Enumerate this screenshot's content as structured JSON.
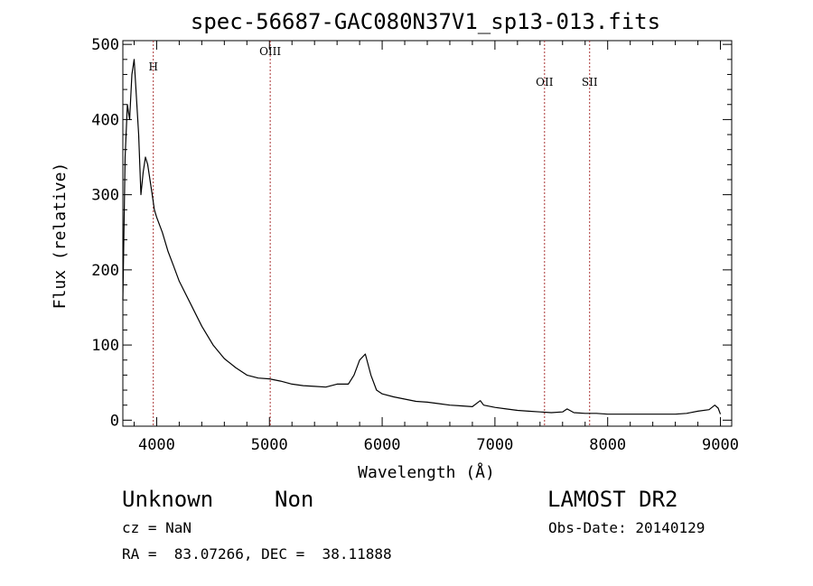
{
  "chart_data": {
    "type": "line",
    "title": "spec-56687-GAC080N37V1_sp13-013.fits",
    "xlabel": "Wavelength (Å)",
    "ylabel": "Flux (relative)",
    "xlim": [
      3700,
      9100
    ],
    "ylim": [
      -8,
      505
    ],
    "xticks": [
      4000,
      5000,
      6000,
      7000,
      8000,
      9000
    ],
    "yticks": [
      0,
      100,
      200,
      300,
      400,
      500
    ],
    "grid": false,
    "lines": [
      {
        "label": "H",
        "x": 3970
      },
      {
        "label": "OIII",
        "x": 5007
      },
      {
        "label": "OII",
        "x": 7440
      },
      {
        "label": "SII",
        "x": 7840
      }
    ],
    "series": [
      {
        "x": [
          3700,
          3720,
          3740,
          3760,
          3780,
          3800,
          3820,
          3840,
          3860,
          3880,
          3900,
          3920,
          3940,
          3960,
          3980,
          4000,
          4050,
          4100,
          4150,
          4200,
          4300,
          4400,
          4500,
          4600,
          4700,
          4800,
          4900,
          5000,
          5100,
          5200,
          5300,
          5400,
          5500,
          5600,
          5700,
          5750,
          5800,
          5850,
          5900,
          5950,
          6000,
          6100,
          6200,
          6300,
          6400,
          6500,
          6600,
          6700,
          6800,
          6870,
          6900,
          7000,
          7100,
          7200,
          7300,
          7400,
          7500,
          7600,
          7640,
          7700,
          7800,
          7900,
          8000,
          8100,
          8200,
          8300,
          8400,
          8500,
          8600,
          8700,
          8800,
          8900,
          8950,
          8980,
          9000
        ],
        "y": [
          160,
          350,
          420,
          400,
          460,
          480,
          430,
          380,
          300,
          330,
          350,
          340,
          320,
          300,
          280,
          270,
          250,
          225,
          205,
          185,
          155,
          125,
          100,
          82,
          70,
          60,
          56,
          55,
          52,
          48,
          46,
          45,
          44,
          48,
          48,
          60,
          80,
          88,
          60,
          40,
          35,
          31,
          28,
          25,
          24,
          22,
          20,
          19,
          18,
          26,
          20,
          17,
          15,
          13,
          12,
          11,
          10,
          11,
          15,
          10,
          9,
          9,
          8,
          8,
          8,
          8,
          8,
          8,
          8,
          9,
          12,
          14,
          20,
          16,
          8
        ]
      }
    ]
  },
  "info": {
    "class": "Unknown",
    "subclass": "Non",
    "survey": "LAMOST DR2",
    "cz": "cz = NaN",
    "obs_date": "Obs-Date: 20140129",
    "radec": "RA =  83.07266, DEC =  38.11888"
  }
}
